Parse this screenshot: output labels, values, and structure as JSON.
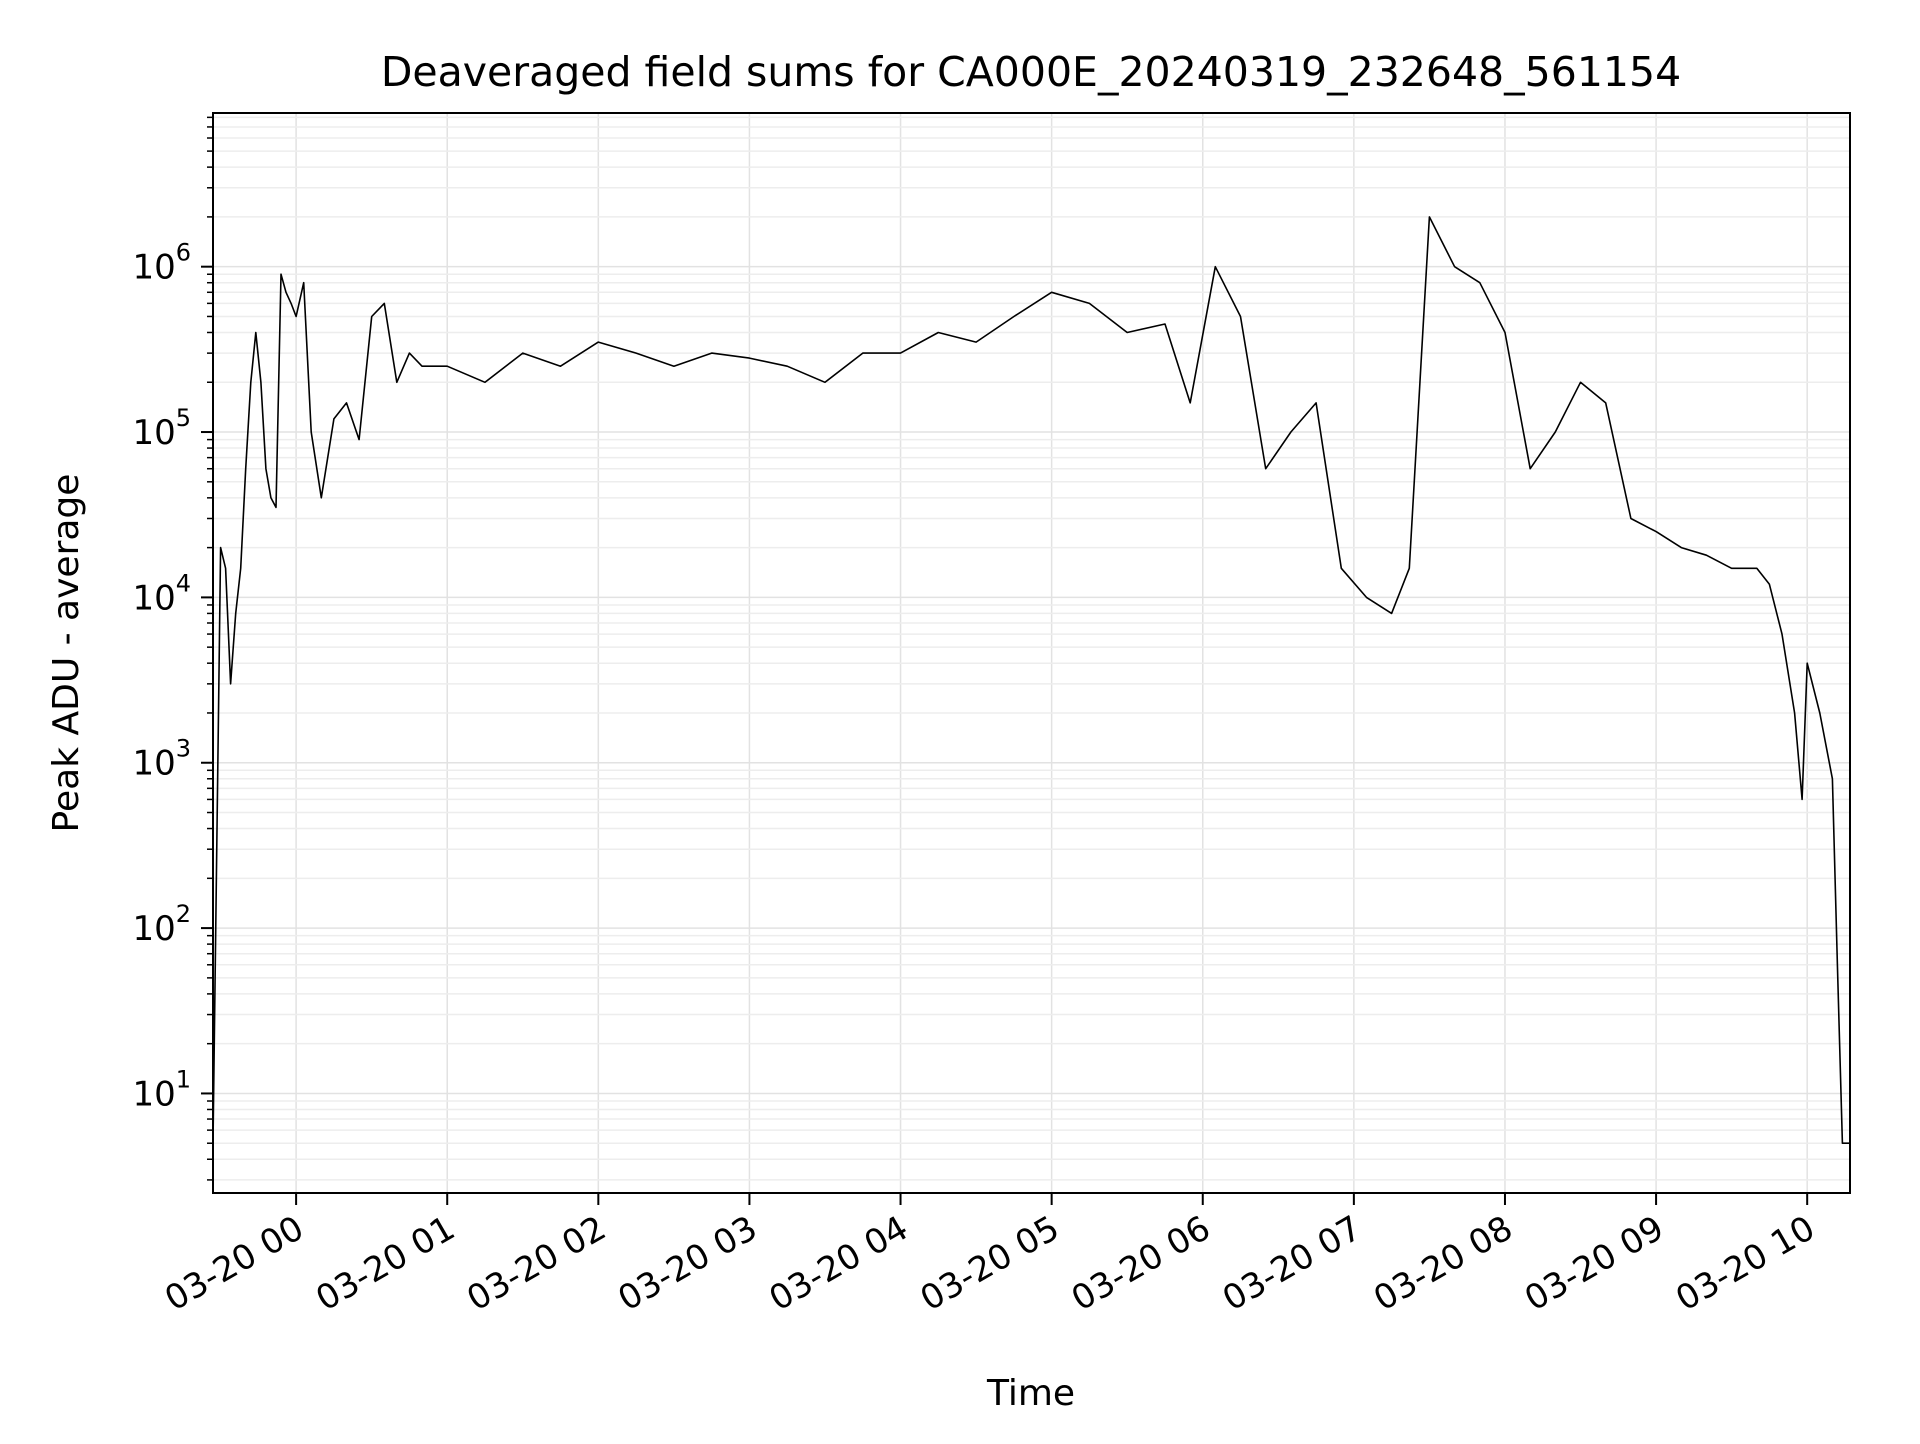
{
  "chart_data": {
    "type": "line",
    "title": "Deaveraged field sums for CA000E_20240319_232648_561154",
    "xlabel": "Time",
    "ylabel": "Peak ADU - average",
    "y_scale": "log",
    "xlim": [
      "2024-03-19T23:27",
      "2024-03-20T10:17"
    ],
    "ylim": [
      2.5,
      8500000
    ],
    "grid": {
      "major": true,
      "minor": true
    },
    "line_color": "#000000",
    "x_ticks": [
      {
        "value": "2024-03-20T00:00",
        "label": "03-20 00"
      },
      {
        "value": "2024-03-20T01:00",
        "label": "03-20 01"
      },
      {
        "value": "2024-03-20T02:00",
        "label": "03-20 02"
      },
      {
        "value": "2024-03-20T03:00",
        "label": "03-20 03"
      },
      {
        "value": "2024-03-20T04:00",
        "label": "03-20 04"
      },
      {
        "value": "2024-03-20T05:00",
        "label": "03-20 05"
      },
      {
        "value": "2024-03-20T06:00",
        "label": "03-20 06"
      },
      {
        "value": "2024-03-20T07:00",
        "label": "03-20 07"
      },
      {
        "value": "2024-03-20T08:00",
        "label": "03-20 08"
      },
      {
        "value": "2024-03-20T09:00",
        "label": "03-20 09"
      },
      {
        "value": "2024-03-20T10:00",
        "label": "03-20 10"
      }
    ],
    "y_ticks": [
      {
        "value": 10,
        "base": "10",
        "exp": "1"
      },
      {
        "value": 100,
        "base": "10",
        "exp": "2"
      },
      {
        "value": 1000,
        "base": "10",
        "exp": "3"
      },
      {
        "value": 10000,
        "base": "10",
        "exp": "4"
      },
      {
        "value": 100000,
        "base": "10",
        "exp": "5"
      },
      {
        "value": 1000000,
        "base": "10",
        "exp": "6"
      }
    ],
    "series": [
      {
        "x": [
          "2024-03-19T23:27",
          "2024-03-19T23:30",
          "2024-03-19T23:32",
          "2024-03-19T23:34",
          "2024-03-19T23:36",
          "2024-03-19T23:38",
          "2024-03-19T23:40",
          "2024-03-19T23:42",
          "2024-03-19T23:44",
          "2024-03-19T23:46",
          "2024-03-19T23:48",
          "2024-03-19T23:50",
          "2024-03-19T23:52",
          "2024-03-19T23:54",
          "2024-03-19T23:56",
          "2024-03-19T23:58",
          "2024-03-20T00:00",
          "2024-03-20T00:03",
          "2024-03-20T00:06",
          "2024-03-20T00:10",
          "2024-03-20T00:15",
          "2024-03-20T00:20",
          "2024-03-20T00:25",
          "2024-03-20T00:30",
          "2024-03-20T00:35",
          "2024-03-20T00:40",
          "2024-03-20T00:45",
          "2024-03-20T00:50",
          "2024-03-20T01:00",
          "2024-03-20T01:15",
          "2024-03-20T01:30",
          "2024-03-20T01:45",
          "2024-03-20T02:00",
          "2024-03-20T02:15",
          "2024-03-20T02:30",
          "2024-03-20T02:45",
          "2024-03-20T03:00",
          "2024-03-20T03:15",
          "2024-03-20T03:30",
          "2024-03-20T03:45",
          "2024-03-20T04:00",
          "2024-03-20T04:15",
          "2024-03-20T04:30",
          "2024-03-20T04:45",
          "2024-03-20T05:00",
          "2024-03-20T05:15",
          "2024-03-20T05:30",
          "2024-03-20T05:45",
          "2024-03-20T05:55",
          "2024-03-20T06:05",
          "2024-03-20T06:15",
          "2024-03-20T06:25",
          "2024-03-20T06:35",
          "2024-03-20T06:45",
          "2024-03-20T06:55",
          "2024-03-20T07:05",
          "2024-03-20T07:15",
          "2024-03-20T07:22",
          "2024-03-20T07:30",
          "2024-03-20T07:40",
          "2024-03-20T07:50",
          "2024-03-20T08:00",
          "2024-03-20T08:10",
          "2024-03-20T08:20",
          "2024-03-20T08:30",
          "2024-03-20T08:40",
          "2024-03-20T08:50",
          "2024-03-20T09:00",
          "2024-03-20T09:10",
          "2024-03-20T09:20",
          "2024-03-20T09:30",
          "2024-03-20T09:40",
          "2024-03-20T09:45",
          "2024-03-20T09:50",
          "2024-03-20T09:55",
          "2024-03-20T09:58",
          "2024-03-20T10:00",
          "2024-03-20T10:05",
          "2024-03-20T10:10",
          "2024-03-20T10:12",
          "2024-03-20T10:14",
          "2024-03-20T10:17"
        ],
        "y": [
          5,
          20000,
          15000,
          3000,
          8000,
          15000,
          60000,
          200000,
          400000,
          200000,
          60000,
          40000,
          35000,
          900000,
          700000,
          600000,
          500000,
          800000,
          100000,
          40000,
          120000,
          150000,
          90000,
          500000,
          600000,
          200000,
          300000,
          250000,
          250000,
          200000,
          300000,
          250000,
          350000,
          300000,
          250000,
          300000,
          280000,
          250000,
          200000,
          300000,
          300000,
          400000,
          350000,
          500000,
          700000,
          600000,
          400000,
          450000,
          150000,
          1000000,
          500000,
          60000,
          100000,
          150000,
          15000,
          10000,
          8000,
          15000,
          2000000,
          1000000,
          800000,
          400000,
          60000,
          100000,
          200000,
          150000,
          30000,
          25000,
          20000,
          18000,
          15000,
          15000,
          12000,
          6000,
          2000,
          600,
          4000,
          2000,
          800,
          60,
          5,
          5
        ]
      }
    ]
  }
}
